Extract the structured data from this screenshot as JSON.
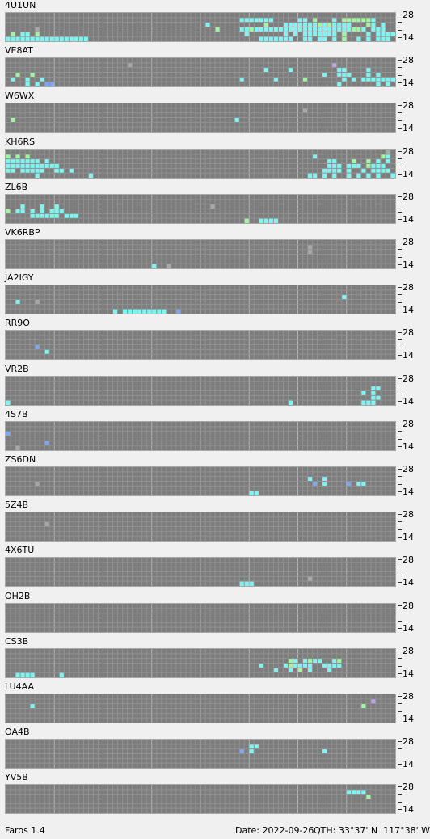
{
  "app": {
    "version": "Faros 1.4"
  },
  "status": {
    "date": "Date: 2022-09-26",
    "qth": "QTH: 33°37' N  117°38' W"
  },
  "scale": {
    "top": "28",
    "bottom": "14",
    "tick": "-"
  },
  "colors": {
    "grid_bg": "#7d7d7d",
    "cell_line": "#919191",
    "hour_line": "#b4b4b4",
    "level_1": "#a8a8a8",
    "level_2": "#7fa6f2",
    "level_3": "#7ff5f2",
    "level_4": "#a2f5a2",
    "level_5": "#c0a0f0"
  },
  "bands": [
    {
      "callsign": "4U1UN",
      "rows": [
        "...............................................................................",
        "................................................3333333.....33.4...3.4444443....3",
        ".........................................3...........4...33333334343333...43.3..",
        "......1....................................4....33433333333333333333333443.333...",
        ".4.33.4..........................................3.......3.3.3333333.4....3.3333",
        "33333333333333333...................................3333333..33.33.3.4..3.3.333."
      ]
    },
    {
      "callsign": "VE8AT",
      "rows": [
        "...........................................................................",
        ".........................1.........................................5...........",
        ".....................................................3....3.........33....3.....",
        "..4..4...........................................................3..333...3.3...",
        ".3..3..3........................................3......3.....4.......3.3.33333333",
        "....3.3.22..........................................................3.......3.3.."
      ]
    },
    {
      "callsign": "W6WX",
      "rows": [
        "...........................................................................",
        ".............................................................1..................",
        "...............................................................................",
        ".4.............................................3...............................",
        "...............................................................................",
        "..............................................................................."
      ]
    },
    {
      "callsign": "KH6RS",
      "rows": [
        "..............................................................................1",
        "4.4.4..........................................................3.............43",
        "3333333.3.........................................................33...4..4.3.3",
        "33333333333.......................................................333.333.4333.",
        "33.33333..33.3...................................................3333.3..3.3333",
        "......3..........3............................................33.3.3..3.3.3.3..3"
      ]
    },
    {
      "callsign": "ZL6B",
      "rows": [
        ".............................................................................",
        "..........................................................................",
        "...3...3..3...............................1...................................",
        "4.33.3.3.333..................................................................",
        ".....333333.333...............................................................",
        ".................................................4..3333....................."
      ]
    },
    {
      "callsign": "VK6RBP",
      "rows": [
        "..............................................................................",
        "..............................................................1...............",
        "..............................................................1...............",
        "..............................................................................",
        "..............................................................................",
        "..............................3..1............................................"
      ]
    },
    {
      "callsign": "JA2IGY",
      "rows": [
        "..............................................................................",
        "..............................................................................",
        ".....................................................................3.........",
        "..3...1.....................................................................",
        "..............................................................................",
        "......................3.333333333..2....................................."
      ]
    },
    {
      "callsign": "RR9O",
      "rows": [
        "..............................................................................",
        "..............................................................................",
        "..............................................................................",
        "......2.......................................................................",
        "........3.....................................................................",
        ".............................................................................."
      ]
    },
    {
      "callsign": "VR2B",
      "rows": [
        "..............................................................................",
        "..............................................................................",
        "...........................................................................33",
        ".........................................................................3.3.",
        "...........................................................................33",
        "3.........................................................3..............333."
      ]
    },
    {
      "callsign": "4S7B",
      "rows": [
        "..............................................................................",
        "..............................................................................",
        "2.............................................................................",
        "..............................................................................",
        "........2.....................................................................",
        "..1..........................................................................."
      ]
    },
    {
      "callsign": "ZS6DN",
      "rows": [
        "..............................................................................",
        "..............................................................................",
        "..............................................................3..3............",
        "......1........................................................2.3....2.33.......",
        "..............................................................................",
        "..................................................33.........................."
      ]
    },
    {
      "callsign": "5Z4B",
      "rows": [
        "..............................................................................",
        "..............................................................................",
        "........1.....................................................................",
        "..............................................................................",
        "..............................................................................",
        ".............................................................................."
      ]
    },
    {
      "callsign": "4X6TU",
      "rows": [
        "..............................................................................",
        "..............................................................................",
        "..............................................................................",
        "..............................................................................",
        "..............................................................1...............",
        "................................................333..........................."
      ]
    },
    {
      "callsign": "OH2B",
      "rows": [
        "..............................................................................",
        "..............................................................................",
        "..............................................................................",
        "..............................................................................",
        "..............................................................................",
        ".............................................................................."
      ]
    },
    {
      "callsign": "CS3B",
      "rows": [
        "..............................................................................",
        "..............................................................................",
        "..........................................................43.3433..34.........",
        "....................................................3....343333..3333........",
        ".......................................................3..3.4.3...3.........",
        "..3333.....3.................................................................."
      ]
    },
    {
      "callsign": "LU4AA",
      "rows": [
        "..............................................................................",
        "...........................................................................5",
        ".....3...................................................................4.",
        ".......................................................................",
        "....................................................................",
        "......................................................................."
      ]
    },
    {
      "callsign": "OA4B",
      "rows": [
        "..............................................................................",
        "..................................................33..........................",
        "................................................2.3..............3...........",
        "..............................................................................",
        "..............................................................................",
        ".............................................................................."
      ]
    },
    {
      "callsign": "YV5B",
      "rows": [
        "..............................................................................",
        "......................................................................3333.....",
        "..........................................................................4....",
        "..............................................................................",
        "..............................................................................",
        ".............................................................................."
      ]
    }
  ]
}
